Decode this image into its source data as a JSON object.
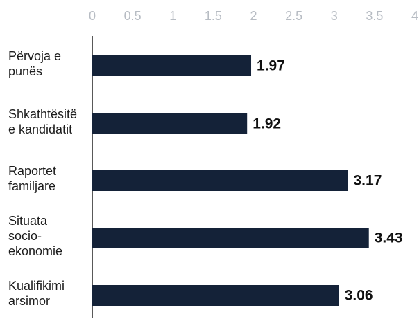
{
  "chart_data": {
    "type": "bar",
    "orientation": "horizontal",
    "categories": [
      [
        "Përvoja e",
        "punës"
      ],
      [
        "Shkathtësitë",
        "e kandidatit"
      ],
      [
        "Raportet",
        "familjare"
      ],
      [
        "Situata",
        "socio-",
        "ekonomie"
      ],
      [
        "Kualifikimi",
        "arsimor"
      ]
    ],
    "values": [
      1.97,
      1.92,
      3.17,
      3.43,
      3.06
    ],
    "value_labels": [
      "1.97",
      "1.92",
      "3.17",
      "3.43",
      "3.06"
    ],
    "x_ticks": [
      "0",
      "0.5",
      "1",
      "1.5",
      "2",
      "2.5",
      "3",
      "3.5",
      "4"
    ],
    "xlim": [
      0,
      4
    ],
    "axis_position": "top",
    "grid": false,
    "legend": "none",
    "bar_color": "#142238",
    "axis_color": "#222222",
    "tick_color": "#b7bcc3"
  }
}
